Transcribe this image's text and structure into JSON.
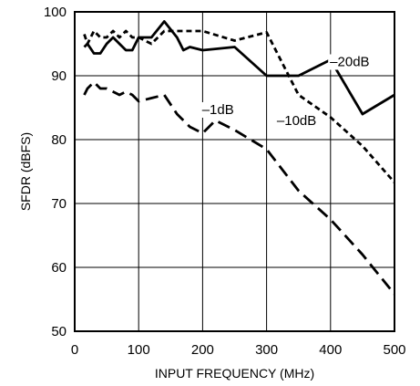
{
  "chart_data": {
    "type": "line",
    "xlabel": "INPUT FREQUENCY (MHz)",
    "ylabel": "SFDR (dBFS)",
    "xlim": [
      0,
      500
    ],
    "ylim": [
      50,
      100
    ],
    "xticks": [
      0,
      100,
      200,
      300,
      400,
      500
    ],
    "yticks": [
      50,
      60,
      70,
      80,
      90,
      100
    ],
    "grid": true,
    "legend": "none (series labelled directly on lines)",
    "series": [
      {
        "name": "–20dB",
        "style": "solid",
        "x": [
          15,
          20,
          30,
          40,
          50,
          60,
          70,
          80,
          90,
          100,
          120,
          140,
          160,
          170,
          180,
          200,
          220,
          250,
          300,
          350,
          400,
          450,
          500
        ],
        "y": [
          94.5,
          95,
          93.5,
          93.5,
          95,
          96,
          95,
          94,
          94,
          96,
          96,
          98.5,
          96,
          94,
          94.5,
          94,
          94.2,
          94.5,
          90,
          90,
          92.5,
          84,
          87
        ]
      },
      {
        "name": "–10dB",
        "style": "short-dash",
        "x": [
          15,
          20,
          30,
          40,
          50,
          60,
          70,
          80,
          90,
          100,
          120,
          130,
          140,
          150,
          200,
          250,
          300,
          350,
          400,
          450,
          500
        ],
        "y": [
          96.5,
          95,
          97,
          96,
          96,
          97,
          96,
          97,
          96,
          96,
          95,
          96,
          97,
          97,
          97,
          95.5,
          96.8,
          87,
          83.5,
          79,
          73.3
        ]
      },
      {
        "name": "–1dB",
        "style": "long-dash",
        "x": [
          15,
          20,
          30,
          40,
          50,
          60,
          70,
          80,
          90,
          100,
          120,
          140,
          160,
          180,
          200,
          220,
          250,
          300,
          350,
          400,
          450,
          500
        ],
        "y": [
          87,
          88,
          89,
          88,
          88,
          87.5,
          87,
          87.5,
          87,
          86,
          86.5,
          87,
          84,
          82,
          81,
          83,
          81.5,
          78.5,
          72,
          67.5,
          62,
          55.8
        ]
      }
    ],
    "annotations": [
      {
        "text": "–20dB",
        "series": "–20dB",
        "x": 430,
        "y": 91.5
      },
      {
        "text": "–10dB",
        "series": "–10dB",
        "x": 347,
        "y": 82.3
      },
      {
        "text": "–1dB",
        "series": "–1dB",
        "x": 224,
        "y": 84
      }
    ]
  }
}
